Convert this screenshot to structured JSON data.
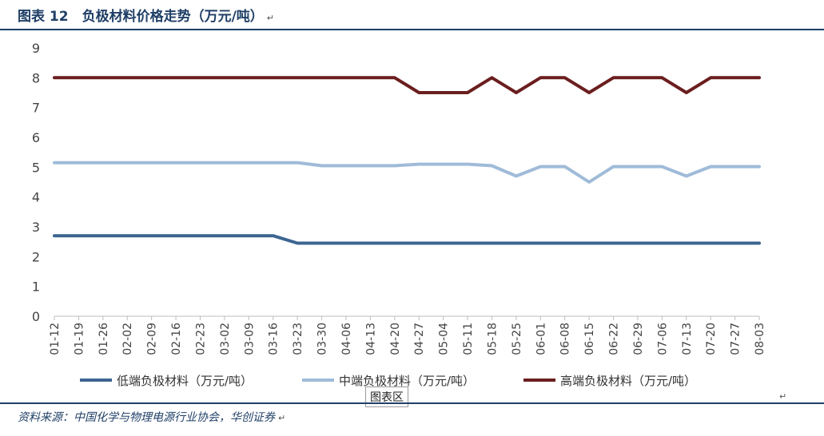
{
  "header": {
    "title": "图表 12　负极材料价格走势（万元/吨）",
    "title_mark": "↵"
  },
  "footer": {
    "source": "资料来源：中国化学与物理电源行业协会，华创证券",
    "source_mark": "↵",
    "tooltip": "图表区",
    "right_mark": "↵"
  },
  "colors": {
    "low": "#3d6591",
    "mid": "#9fbbd8",
    "high": "#6b1e1e",
    "rule": "#1f3f66"
  },
  "chart_data": {
    "type": "line",
    "title": "",
    "xlabel": "",
    "ylabel": "",
    "ylim": [
      0,
      9
    ],
    "yticks": [
      0,
      1,
      2,
      3,
      4,
      5,
      6,
      7,
      8,
      9
    ],
    "grid": false,
    "legend_position": "bottom",
    "categories": [
      "01-12",
      "01-19",
      "01-26",
      "02-02",
      "02-09",
      "02-16",
      "02-23",
      "03-02",
      "03-09",
      "03-16",
      "03-23",
      "03-30",
      "04-06",
      "04-13",
      "04-20",
      "04-27",
      "05-04",
      "05-11",
      "05-18",
      "05-25",
      "06-01",
      "06-08",
      "06-15",
      "06-22",
      "06-29",
      "07-06",
      "07-13",
      "07-20",
      "07-27",
      "08-03"
    ],
    "series": [
      {
        "name": "低端负极材料（万元/吨）",
        "color": "#3d6591",
        "values": [
          2.7,
          2.7,
          2.7,
          2.7,
          2.7,
          2.7,
          2.7,
          2.7,
          2.7,
          2.7,
          2.45,
          2.45,
          2.45,
          2.45,
          2.45,
          2.45,
          2.45,
          2.45,
          2.45,
          2.45,
          2.45,
          2.45,
          2.45,
          2.45,
          2.45,
          2.45,
          2.45,
          2.45,
          2.45,
          2.45
        ]
      },
      {
        "name": "中端负极材料（万元/吨）",
        "color": "#9fbbd8",
        "values": [
          5.15,
          5.15,
          5.15,
          5.15,
          5.15,
          5.15,
          5.15,
          5.15,
          5.15,
          5.15,
          5.15,
          5.05,
          5.05,
          5.05,
          5.05,
          5.1,
          5.1,
          5.1,
          5.05,
          4.7,
          5.02,
          5.02,
          4.5,
          5.02,
          5.02,
          5.02,
          4.7,
          5.02,
          5.02,
          5.02
        ]
      },
      {
        "name": "高端负极材料（万元/吨）",
        "color": "#6b1e1e",
        "values": [
          8,
          8,
          8,
          8,
          8,
          8,
          8,
          8,
          8,
          8,
          8,
          8,
          8,
          8,
          8,
          7.5,
          7.5,
          7.5,
          8,
          7.5,
          8,
          8,
          7.5,
          8,
          8,
          8,
          7.5,
          8,
          8,
          8
        ]
      }
    ]
  }
}
